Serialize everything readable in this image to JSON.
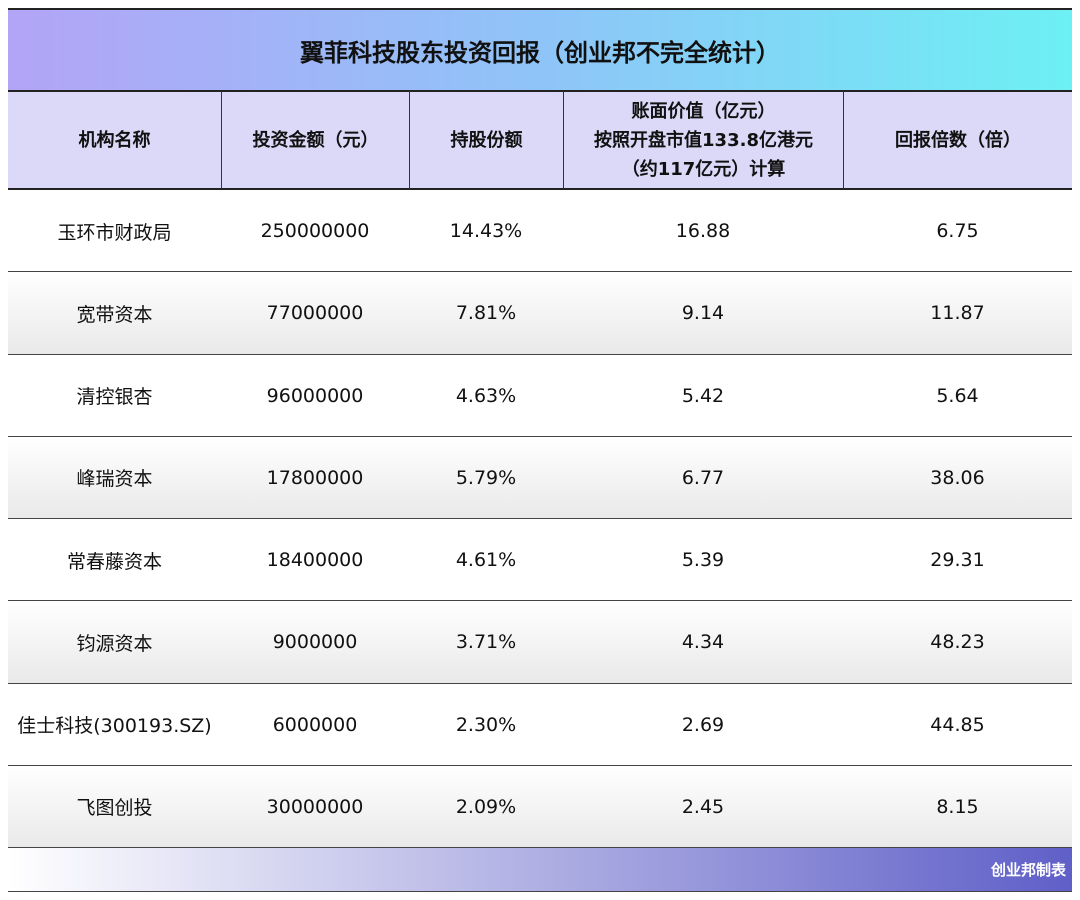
{
  "header": {
    "title": "翼菲科技股东投资回报（创业邦不完全统计）"
  },
  "table": {
    "columns": [
      [
        "机构名称"
      ],
      [
        "投资金额（元）"
      ],
      [
        "持股份额"
      ],
      [
        "账面价值（亿元）",
        "按照开盘市值133.8亿港元",
        "（约117亿元）计算"
      ],
      [
        "回报倍数（倍）"
      ]
    ],
    "rows": [
      [
        "玉环市财政局",
        "250000000",
        "14.43%",
        "16.88",
        "6.75"
      ],
      [
        "宽带资本",
        "77000000",
        "7.81%",
        "9.14",
        "11.87"
      ],
      [
        "清控银杏",
        "96000000",
        "4.63%",
        "5.42",
        "5.64"
      ],
      [
        "峰瑞资本",
        "17800000",
        "5.79%",
        "6.77",
        "38.06"
      ],
      [
        "常春藤资本",
        "18400000",
        "4.61%",
        "5.39",
        "29.31"
      ],
      [
        "钧源资本",
        "9000000",
        "3.71%",
        "4.34",
        "48.23"
      ],
      [
        "佳士科技(300193.SZ)",
        "6000000",
        "2.30%",
        "2.69",
        "44.85"
      ],
      [
        "飞图创投",
        "30000000",
        "2.09%",
        "2.45",
        "8.15"
      ]
    ]
  },
  "footer": {
    "source": "创业邦制表"
  }
}
